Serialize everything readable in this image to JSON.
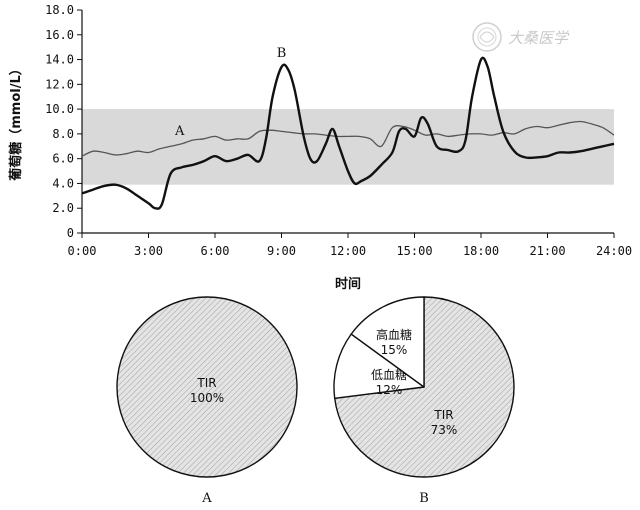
{
  "watermark": {
    "text": "大桑医学",
    "color": "#cccccc"
  },
  "chart_data": [
    {
      "type": "line",
      "title": "",
      "xlabel": "时间",
      "ylabel": "葡萄糖（mmol/L）",
      "xlim": [
        0,
        24
      ],
      "ylim": [
        0,
        18
      ],
      "x_tick_labels": [
        "0:00",
        "3:00",
        "6:00",
        "9:00",
        "12:00",
        "15:00",
        "18:00",
        "21:00",
        "24:00"
      ],
      "y_tick_labels": [
        "0",
        "2.0",
        "4.0",
        "6.0",
        "8.0",
        "10.0",
        "12.0",
        "14.0",
        "16.0",
        "18.0"
      ],
      "target_range": {
        "low": 3.9,
        "high": 10.0,
        "color": "#d9d9d9"
      },
      "grid": false,
      "series": [
        {
          "name": "A",
          "color": "#555555",
          "x": [
            0,
            0.5,
            1,
            1.5,
            2,
            2.5,
            3,
            3.5,
            4,
            4.5,
            5,
            5.5,
            6,
            6.5,
            7,
            7.5,
            8,
            8.5,
            9,
            9.5,
            10,
            10.5,
            11,
            11.5,
            12,
            12.5,
            13,
            13.5,
            14,
            14.5,
            15,
            15.5,
            16,
            16.5,
            17,
            17.5,
            18,
            18.5,
            19,
            19.5,
            20,
            20.5,
            21,
            21.5,
            22,
            22.5,
            23,
            23.5,
            24
          ],
          "y": [
            6.2,
            6.6,
            6.5,
            6.3,
            6.4,
            6.6,
            6.5,
            6.8,
            7.0,
            7.2,
            7.5,
            7.6,
            7.8,
            7.5,
            7.6,
            7.6,
            8.2,
            8.3,
            8.2,
            8.1,
            8.0,
            8.0,
            7.9,
            7.8,
            7.8,
            7.8,
            7.6,
            7.0,
            8.5,
            8.6,
            8.3,
            7.9,
            8.0,
            7.8,
            7.9,
            8.0,
            8.0,
            7.9,
            8.1,
            8.0,
            8.4,
            8.6,
            8.5,
            8.7,
            8.9,
            9.0,
            8.8,
            8.5,
            7.9
          ]
        },
        {
          "name": "B",
          "color": "#111111",
          "x": [
            0,
            0.5,
            1,
            1.5,
            2,
            2.5,
            3,
            3.3,
            3.6,
            4,
            4.5,
            5,
            5.5,
            6,
            6.5,
            7,
            7.5,
            8,
            8.3,
            8.6,
            9,
            9.3,
            9.6,
            10,
            10.3,
            10.6,
            11,
            11.3,
            11.6,
            12,
            12.3,
            12.6,
            13,
            13.5,
            14,
            14.3,
            14.6,
            15,
            15.3,
            15.6,
            16,
            16.5,
            17,
            17.3,
            17.6,
            18,
            18.3,
            18.6,
            19,
            19.5,
            20,
            20.5,
            21,
            21.5,
            22,
            22.5,
            23,
            23.5,
            24
          ],
          "y": [
            3.2,
            3.5,
            3.8,
            3.9,
            3.6,
            3.0,
            2.4,
            2.0,
            2.3,
            4.8,
            5.3,
            5.5,
            5.8,
            6.2,
            5.8,
            6.0,
            6.3,
            5.8,
            7.6,
            11.0,
            13.4,
            13.2,
            11.5,
            7.8,
            6.0,
            5.8,
            7.2,
            8.4,
            7.0,
            5.0,
            4.0,
            4.2,
            4.6,
            5.5,
            6.5,
            8.2,
            8.4,
            7.8,
            9.3,
            8.8,
            7.0,
            6.7,
            6.6,
            7.5,
            11.0,
            14.0,
            13.4,
            11.0,
            8.2,
            6.6,
            6.1,
            6.1,
            6.2,
            6.5,
            6.5,
            6.6,
            6.8,
            7.0,
            7.2
          ]
        }
      ]
    },
    {
      "type": "pie",
      "panel_label": "A",
      "color": "#e6e6e6",
      "slices": [
        {
          "name": "TIR",
          "value": 100,
          "value_label": "100%"
        }
      ]
    },
    {
      "type": "pie",
      "panel_label": "B",
      "slices": [
        {
          "name": "TIR",
          "value": 73,
          "value_label": "73%",
          "color": "#e6e6e6"
        },
        {
          "name": "低血糖",
          "value": 12,
          "value_label": "12%",
          "color": "#ffffff"
        },
        {
          "name": "高血糖",
          "value": 15,
          "value_label": "15%",
          "color": "#ffffff"
        }
      ]
    }
  ]
}
